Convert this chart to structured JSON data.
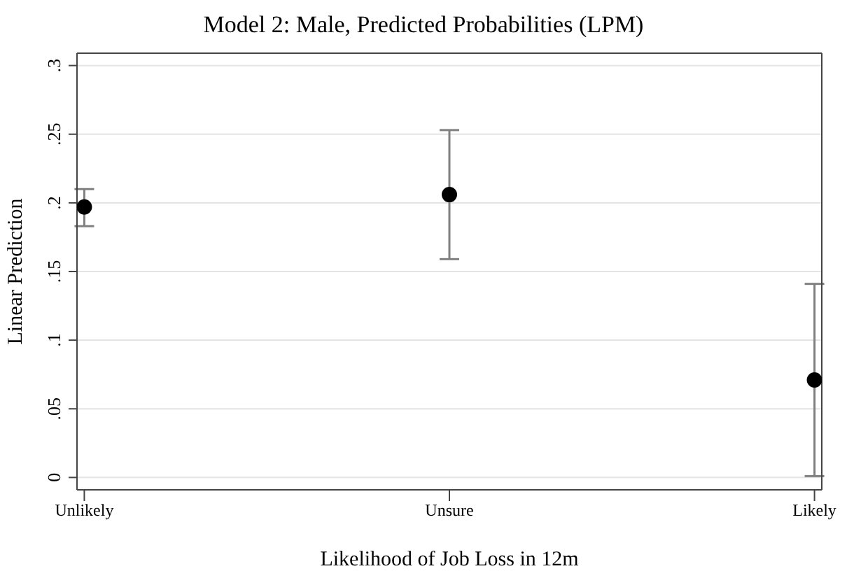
{
  "chart_data": {
    "type": "scatter",
    "title": "Model 2: Male, Predicted Probabilities (LPM)",
    "xlabel": "Likelihood of Job Loss in 12m",
    "ylabel": "Linear Prediction",
    "categories": [
      "Unlikely",
      "Unsure",
      "Likely"
    ],
    "series": [
      {
        "color": "#000000",
        "values": [
          0.197,
          0.206,
          0.071
        ],
        "errors": [
          [
            0.183,
            0.21
          ],
          [
            0.159,
            0.253
          ],
          [
            0.001,
            0.141
          ]
        ]
      }
    ],
    "ylim": [
      -0.009,
      0.309
    ],
    "yticks": [
      {
        "value": 0,
        "label": "0"
      },
      {
        "value": 0.05,
        "label": ".05"
      },
      {
        "value": 0.1,
        "label": ".1"
      },
      {
        "value": 0.15,
        "label": ".15"
      },
      {
        "value": 0.2,
        "label": ".2"
      },
      {
        "value": 0.25,
        "label": ".25"
      },
      {
        "value": 0.3,
        "label": ".3"
      }
    ],
    "grid": "y",
    "marker": "circle"
  }
}
